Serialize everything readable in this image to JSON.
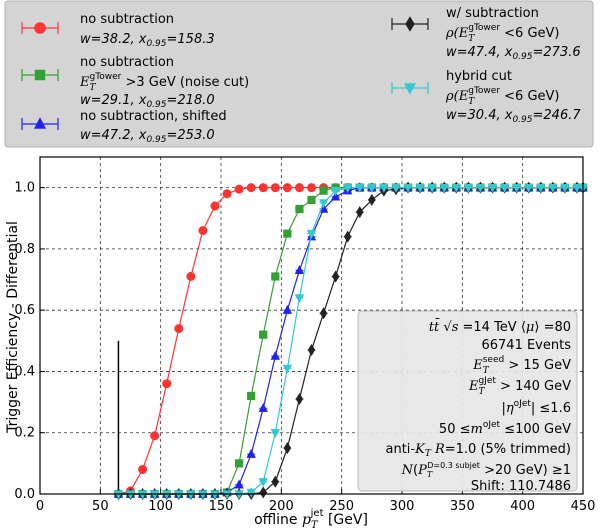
{
  "chart_data": {
    "type": "line",
    "xlabel": "offline p_T^jet [GeV]",
    "xlabel_parts": {
      "pre": "offline ",
      "var": "p",
      "sub": "T",
      "sup": "jet",
      "post": " [GeV]"
    },
    "ylabel": "Trigger Efficiency - Differential",
    "xlim": [
      0,
      450
    ],
    "ylim": [
      0,
      1.1
    ],
    "x_ticks": [
      0,
      50,
      100,
      150,
      200,
      250,
      300,
      350,
      400,
      450
    ],
    "y_ticks": [
      0.0,
      0.2,
      0.4,
      0.6,
      0.8,
      1.0
    ],
    "y_tick_labels": [
      "0.0",
      "0.2",
      "0.4",
      "0.6",
      "0.8",
      "1.0"
    ],
    "grid": true,
    "legend_placement": "top, outside plot",
    "vertical_marker_x": 65,
    "vertical_marker_ymax": 0.5,
    "series": [
      {
        "name": "no subtraction",
        "params": "w=38.2, x_0.95=158.3",
        "color": "#ff3333",
        "marker": "circle",
        "x": [
          65,
          75,
          85,
          95,
          105,
          115,
          125,
          135,
          145,
          155,
          165,
          175,
          185,
          195,
          205,
          215,
          225,
          235,
          245,
          255,
          265,
          275,
          285,
          295,
          305,
          315,
          325,
          335,
          345,
          355,
          365,
          375,
          385,
          395,
          405,
          415,
          425,
          435,
          445,
          450
        ],
        "y": [
          0.0,
          0.01,
          0.08,
          0.19,
          0.36,
          0.54,
          0.71,
          0.86,
          0.94,
          0.98,
          0.995,
          1.0,
          1.0,
          1.0,
          1.0,
          1.0,
          1.0,
          1.0,
          1.0,
          1.0,
          1.0,
          1.0,
          1.0,
          1.0,
          1.0,
          1.0,
          1.0,
          1.0,
          1.0,
          1.0,
          1.0,
          1.0,
          1.0,
          1.0,
          1.0,
          1.0,
          1.0,
          1.0,
          1.0,
          1.0
        ]
      },
      {
        "name": "no subtraction E_T^gTower >3 GeV (noise cut)",
        "params": "w=29.1, x_0.95=218.0",
        "color": "#33a033",
        "marker": "square",
        "x": [
          65,
          75,
          85,
          95,
          105,
          115,
          125,
          135,
          145,
          155,
          165,
          175,
          185,
          195,
          205,
          215,
          225,
          235,
          245,
          255,
          265,
          275,
          285,
          295,
          305,
          315,
          325,
          335,
          345,
          355,
          365,
          375,
          385,
          395,
          405,
          415,
          425,
          435,
          445,
          450
        ],
        "y": [
          0.0,
          0.0,
          0.0,
          0.0,
          0.0,
          0.0,
          0.0,
          0.0,
          0.0,
          0.005,
          0.1,
          0.32,
          0.52,
          0.71,
          0.85,
          0.93,
          0.96,
          0.99,
          1.0,
          1.0,
          1.0,
          1.0,
          1.0,
          1.0,
          1.0,
          1.0,
          1.0,
          1.0,
          1.0,
          1.0,
          1.0,
          1.0,
          1.0,
          1.0,
          1.0,
          1.0,
          1.0,
          1.0,
          1.0,
          1.0
        ]
      },
      {
        "name": "no subtraction, shifted",
        "params": "w=47.2, x_0.95=253.0",
        "color": "#2222ee",
        "marker": "triangle-up",
        "x": [
          65,
          75,
          85,
          95,
          105,
          115,
          125,
          135,
          145,
          155,
          165,
          175,
          185,
          195,
          205,
          215,
          225,
          235,
          245,
          255,
          265,
          275,
          285,
          295,
          305,
          315,
          325,
          335,
          345,
          355,
          365,
          375,
          385,
          395,
          405,
          415,
          425,
          435,
          445,
          450
        ],
        "y": [
          0.0,
          0.0,
          0.0,
          0.0,
          0.0,
          0.0,
          0.0,
          0.0,
          0.0,
          0.005,
          0.03,
          0.13,
          0.28,
          0.45,
          0.6,
          0.73,
          0.84,
          0.93,
          0.97,
          0.99,
          1.0,
          1.0,
          1.0,
          1.0,
          1.0,
          1.0,
          1.0,
          1.0,
          1.0,
          1.0,
          1.0,
          1.0,
          1.0,
          1.0,
          1.0,
          1.0,
          1.0,
          1.0,
          1.0,
          1.0
        ]
      },
      {
        "name": "w/ subtraction ρ(E_T^gTower <6 GeV)",
        "params": "w=47.4, x_0.95=273.6",
        "color": "#222222",
        "marker": "diamond",
        "x": [
          65,
          75,
          85,
          95,
          105,
          115,
          125,
          135,
          145,
          155,
          165,
          175,
          185,
          195,
          205,
          215,
          225,
          235,
          245,
          255,
          265,
          275,
          285,
          295,
          305,
          315,
          325,
          335,
          345,
          355,
          365,
          375,
          385,
          395,
          405,
          415,
          425,
          435,
          445,
          450
        ],
        "y": [
          0.0,
          0.0,
          0.0,
          0.0,
          0.0,
          0.0,
          0.0,
          0.0,
          0.0,
          0.0,
          0.0,
          0.0,
          0.005,
          0.04,
          0.15,
          0.31,
          0.47,
          0.59,
          0.71,
          0.84,
          0.92,
          0.96,
          0.99,
          0.995,
          1.0,
          1.0,
          1.0,
          1.0,
          1.0,
          1.0,
          1.0,
          1.0,
          1.0,
          1.0,
          1.0,
          1.0,
          1.0,
          1.0,
          1.0,
          1.0
        ]
      },
      {
        "name": "hybrid cut ρ(E_T^gTower <6 GeV)",
        "params": "w=30.4, x_0.95=246.7",
        "color": "#33c8d0",
        "marker": "triangle-down",
        "x": [
          65,
          75,
          85,
          95,
          105,
          115,
          125,
          135,
          145,
          155,
          165,
          175,
          185,
          195,
          205,
          215,
          225,
          235,
          245,
          255,
          265,
          275,
          285,
          295,
          305,
          315,
          325,
          335,
          345,
          355,
          365,
          375,
          385,
          395,
          405,
          415,
          425,
          435,
          445,
          450
        ],
        "y": [
          0.0,
          0.0,
          0.0,
          0.0,
          0.0,
          0.0,
          0.0,
          0.0,
          0.0,
          0.0,
          0.0,
          0.005,
          0.04,
          0.2,
          0.41,
          0.64,
          0.85,
          0.95,
          0.99,
          1.0,
          1.0,
          1.0,
          1.0,
          1.0,
          1.0,
          1.0,
          1.0,
          1.0,
          1.0,
          1.0,
          1.0,
          1.0,
          1.0,
          1.0,
          1.0,
          1.0,
          1.0,
          1.0,
          1.0,
          1.0
        ]
      }
    ],
    "annotations": [
      "tt̄ √s =14 TeV ⟨μ⟩ =80",
      "66741 Events",
      "E_T^seed > 15 GeV",
      "E_T^gJet > 140 GeV",
      "|η^oJet| ≤1.6",
      "50 ≤m^oJet ≤100 GeV",
      "anti-K_T R=1.0 (5% trimmed)",
      "N(P_T^D=0.3 subjet >20 GeV) ≥1",
      "Shift: 110.7486"
    ]
  },
  "legend": {
    "entries": [
      {
        "line1": "no subtraction",
        "line2": "",
        "params": {
          "w": "38.2",
          "x95": "158.3"
        }
      },
      {
        "line1": "no subtraction",
        "line2": "E_T^gTower >3 GeV (noise cut)",
        "params": {
          "w": "29.1",
          "x95": "218.0"
        }
      },
      {
        "line1": "no subtraction, shifted",
        "line2": "",
        "params": {
          "w": "47.2",
          "x95": "253.0"
        }
      },
      {
        "line1": "w/ subtraction",
        "line2": "ρ(E_T^gTower <6 GeV)",
        "params": {
          "w": "47.4",
          "x95": "273.6"
        }
      },
      {
        "line1": "hybrid cut",
        "line2": "ρ(E_T^gTower <6 GeV)",
        "params": {
          "w": "30.4",
          "x95": "246.7"
        }
      }
    ]
  }
}
